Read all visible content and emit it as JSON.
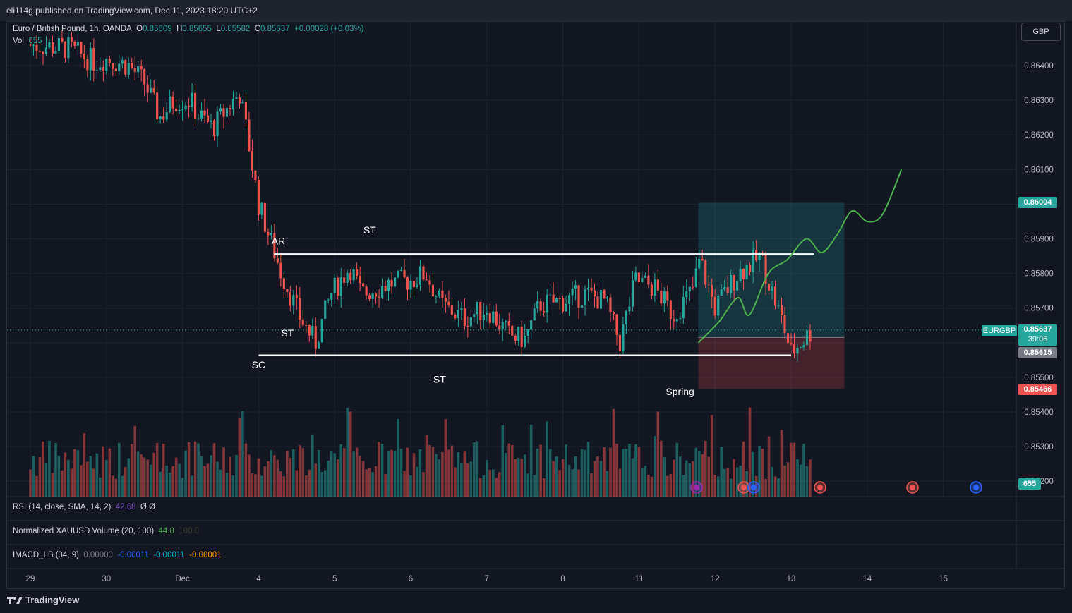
{
  "publisher": "eli114g published on TradingView.com, Dec 11, 2023 18:20 UTC+2",
  "legend": {
    "symbol": "Euro / British Pound, 1h, OANDA",
    "o_label": "O",
    "o": "0.85609",
    "h_label": "H",
    "h": "0.85655",
    "l_label": "L",
    "l": "0.85582",
    "c_label": "C",
    "c": "0.85637",
    "change": "+0.00028 (+0.03%)",
    "vol_label": "Vol",
    "vol": "655"
  },
  "currency_button": "GBP",
  "price_tags": {
    "target": "0.86004",
    "symbol": "EURGBP",
    "last": "0.85637",
    "countdown": "39:06",
    "entry": "0.85615",
    "stop": "0.85466",
    "volume": "655"
  },
  "indicators": {
    "rsi_label": "RSI (14, close, SMA, 14, 2)",
    "rsi_val": "42.68",
    "rsi_extra": "Ø Ø",
    "nvol_label": "Normalized XAUUSD Volume (20, 100)",
    "nvol_val": "44.8",
    "nvol_extra": "100.0",
    "imacd_label": "IMACD_LB (34, 9)",
    "imacd_v1": "0.00000",
    "imacd_v2": "-0.00011",
    "imacd_v3": "-0.00011",
    "imacd_v4": "-0.00001"
  },
  "brand": "TradingView",
  "colors": {
    "bg": "#131722",
    "up": "#26a69a",
    "down": "#ef5350",
    "target_zone": "#26a69a",
    "stop_zone": "#ef5350",
    "projection": "#4caf50"
  },
  "chart_data": {
    "type": "candlestick",
    "symbol": "EURGBP",
    "timeframe": "1h",
    "y_ticks": [
      0.864,
      0.863,
      0.862,
      0.861,
      0.86,
      0.859,
      0.858,
      0.857,
      0.856,
      0.855,
      0.854,
      0.853,
      0.852
    ],
    "y_tick_labels": [
      "0.86400",
      "0.86300",
      "0.86200",
      "0.86100",
      "0.86000",
      "0.85900",
      "0.85800",
      "0.85700",
      "0.85600",
      "0.85500",
      "0.85400",
      "0.85300",
      "0.85200"
    ],
    "x_ticks": [
      {
        "label": "29",
        "day": 0
      },
      {
        "label": "30",
        "day": 1
      },
      {
        "label": "Dec",
        "day": 2
      },
      {
        "label": "4",
        "day": 3
      },
      {
        "label": "5",
        "day": 4
      },
      {
        "label": "6",
        "day": 5
      },
      {
        "label": "7",
        "day": 6
      },
      {
        "label": "8",
        "day": 7
      },
      {
        "label": "11",
        "day": 8
      },
      {
        "label": "12",
        "day": 9
      },
      {
        "label": "13",
        "day": 10
      },
      {
        "label": "14",
        "day": 11
      },
      {
        "label": "15",
        "day": 12
      }
    ],
    "price_path": [
      [
        0.0,
        0.8646
      ],
      [
        0.5,
        0.8645
      ],
      [
        0.85,
        0.8641
      ],
      [
        1.0,
        0.8642
      ],
      [
        1.3,
        0.864
      ],
      [
        1.5,
        0.8635
      ],
      [
        1.7,
        0.8625
      ],
      [
        1.9,
        0.863
      ],
      [
        2.1,
        0.863
      ],
      [
        2.2,
        0.8626
      ],
      [
        2.4,
        0.8622
      ],
      [
        2.6,
        0.8628
      ],
      [
        2.75,
        0.8632
      ],
      [
        2.85,
        0.862
      ],
      [
        3.0,
        0.86
      ],
      [
        3.3,
        0.858
      ],
      [
        3.55,
        0.8567
      ],
      [
        3.75,
        0.856
      ],
      [
        3.95,
        0.8574
      ],
      [
        4.2,
        0.8582
      ],
      [
        4.35,
        0.8574
      ],
      [
        4.7,
        0.8577
      ],
      [
        5.0,
        0.8578
      ],
      [
        5.2,
        0.858
      ],
      [
        5.4,
        0.8571
      ],
      [
        5.7,
        0.8567
      ],
      [
        6.0,
        0.857
      ],
      [
        6.3,
        0.8562
      ],
      [
        6.5,
        0.8561
      ],
      [
        6.7,
        0.8571
      ],
      [
        7.0,
        0.8572
      ],
      [
        7.3,
        0.8574
      ],
      [
        7.55,
        0.8572
      ],
      [
        7.75,
        0.856
      ],
      [
        7.95,
        0.8578
      ],
      [
        8.2,
        0.8576
      ],
      [
        8.45,
        0.8568
      ],
      [
        8.7,
        0.8575
      ],
      [
        8.8,
        0.8584
      ],
      [
        9.0,
        0.857
      ],
      [
        9.3,
        0.858
      ],
      [
        9.6,
        0.8585
      ],
      [
        9.7,
        0.8578
      ],
      [
        9.9,
        0.8565
      ],
      [
        10.0,
        0.8557
      ],
      [
        10.25,
        0.8563
      ]
    ],
    "volume_max": 180,
    "volume_last": 655,
    "wyckoff_labels": [
      {
        "text": "AR",
        "day": 3.26,
        "price": 0.85884
      },
      {
        "text": "ST",
        "day": 4.46,
        "price": 0.85915
      },
      {
        "text": "ST",
        "day": 3.38,
        "price": 0.85618
      },
      {
        "text": "SC",
        "day": 3.0,
        "price": 0.85526
      },
      {
        "text": "ST",
        "day": 5.38,
        "price": 0.85485
      },
      {
        "text": "Spring",
        "day": 8.54,
        "price": 0.85449
      }
    ],
    "range_resistance": 0.85856,
    "range_support": 0.85564,
    "trade_setup": {
      "target": 0.86004,
      "entry": 0.85615,
      "stop": 0.85466
    },
    "projection_path": [
      [
        8.78,
        0.856
      ],
      [
        9.05,
        0.8566
      ],
      [
        9.3,
        0.8573
      ],
      [
        9.45,
        0.8568
      ],
      [
        9.7,
        0.858
      ],
      [
        9.95,
        0.8584
      ],
      [
        10.2,
        0.859
      ],
      [
        10.4,
        0.8586
      ],
      [
        10.6,
        0.8591
      ],
      [
        10.8,
        0.8598
      ],
      [
        11.0,
        0.8595
      ],
      [
        11.2,
        0.8597
      ],
      [
        11.45,
        0.861
      ]
    ]
  }
}
